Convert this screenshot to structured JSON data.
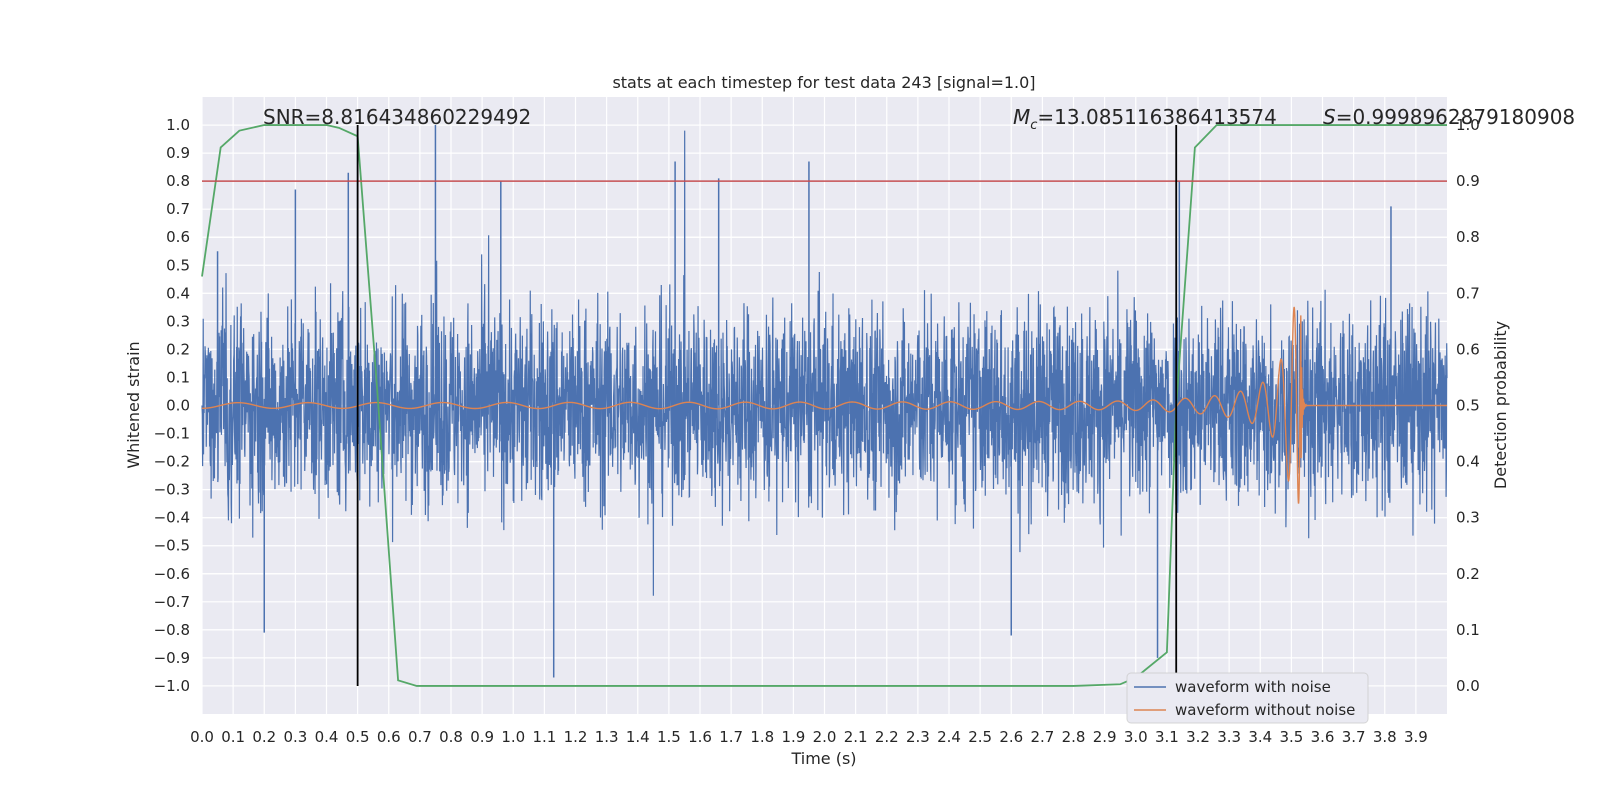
{
  "chart_data": {
    "type": "line",
    "title": "stats at each timestep for test data 243 [signal=1.0]",
    "xlabel": "Time (s)",
    "ylabel": "Whitened strain",
    "y2label": "Detection probability",
    "xlim": [
      0.0,
      4.0
    ],
    "ylim": [
      -1.1,
      1.1
    ],
    "y2lim": [
      -0.05,
      1.05
    ],
    "x_ticks": [
      0.0,
      0.1,
      0.2,
      0.3,
      0.4,
      0.5,
      0.6,
      0.7,
      0.8,
      0.9,
      1.0,
      1.1,
      1.2,
      1.3,
      1.4,
      1.5,
      1.6,
      1.7,
      1.8,
      1.9,
      2.0,
      2.1,
      2.2,
      2.3,
      2.4,
      2.5,
      2.6,
      2.7,
      2.8,
      2.9,
      3.0,
      3.1,
      3.2,
      3.3,
      3.4,
      3.5,
      3.6,
      3.7,
      3.8,
      3.9
    ],
    "x_tick_labels": [
      "0.0",
      "0.1",
      "0.2",
      "0.3",
      "0.4",
      "0.5",
      "0.6",
      "0.7",
      "0.8",
      "0.9",
      "1.0",
      "1.1",
      "1.2",
      "1.3",
      "1.4",
      "1.5",
      "1.6",
      "1.7",
      "1.8",
      "1.9",
      "2.0",
      "2.1",
      "2.2",
      "2.3",
      "2.4",
      "2.5",
      "2.6",
      "2.7",
      "2.8",
      "2.9",
      "3.0",
      "3.1",
      "3.2",
      "3.3",
      "3.4",
      "3.5",
      "3.6",
      "3.7",
      "3.8",
      "3.9"
    ],
    "y_ticks": [
      1.0,
      0.9,
      0.8,
      0.7,
      0.6,
      0.5,
      0.4,
      0.3,
      0.2,
      0.1,
      0.0,
      -0.1,
      -0.2,
      -0.3,
      -0.4,
      -0.5,
      -0.6,
      -0.7,
      -0.8,
      -0.9,
      -1.0
    ],
    "y_tick_labels": [
      "1.0",
      "0.9",
      "0.8",
      "0.7",
      "0.6",
      "0.5",
      "0.4",
      "0.3",
      "0.2",
      "0.1",
      "0.0",
      "−0.1",
      "−0.2",
      "−0.3",
      "−0.4",
      "−0.5",
      "−0.6",
      "−0.7",
      "−0.8",
      "−0.9",
      "−1.0"
    ],
    "y2_ticks": [
      1.0,
      0.9,
      0.8,
      0.7,
      0.6,
      0.5,
      0.4,
      0.3,
      0.2,
      0.1,
      0.0
    ],
    "y2_tick_labels": [
      "1.0",
      "0.9",
      "0.8",
      "0.7",
      "0.6",
      "0.5",
      "0.4",
      "0.3",
      "0.2",
      "0.1",
      "0.0"
    ],
    "grid": true,
    "legend_position": "bottom-right",
    "legend": [
      {
        "label": "waveform with noise",
        "color": "#4c72b0"
      },
      {
        "label": "waveform without noise",
        "color": "#dd8452"
      }
    ],
    "series": [
      {
        "name": "waveform with noise",
        "color": "#4c72b0",
        "kind": "noise",
        "x_range": [
          0.0,
          4.0
        ],
        "typical_amplitude": 0.25,
        "peak_values": [
          {
            "x": 0.05,
            "y": 0.55
          },
          {
            "x": 0.2,
            "y": -0.81
          },
          {
            "x": 0.3,
            "y": 0.77
          },
          {
            "x": 0.47,
            "y": 0.83
          },
          {
            "x": 0.5,
            "y": 0.98
          },
          {
            "x": 0.75,
            "y": 1.0
          },
          {
            "x": 0.96,
            "y": 0.8
          },
          {
            "x": 1.13,
            "y": -0.97
          },
          {
            "x": 1.52,
            "y": 0.87
          },
          {
            "x": 1.66,
            "y": 0.81
          },
          {
            "x": 1.95,
            "y": 0.87
          },
          {
            "x": 2.6,
            "y": -0.82
          },
          {
            "x": 3.07,
            "y": -0.9
          },
          {
            "x": 3.14,
            "y": 0.8
          },
          {
            "x": 3.82,
            "y": 0.71
          }
        ]
      },
      {
        "name": "waveform without noise",
        "color": "#dd8452",
        "kind": "chirp",
        "x_range": [
          0.0,
          3.55
        ],
        "merger_time": 3.53,
        "start_amplitude": 0.01,
        "peak_amplitude": 0.35
      },
      {
        "name": "detection probability",
        "axis": "right",
        "color": "#55a868",
        "x": [
          0.0,
          0.06,
          0.12,
          0.2,
          0.3,
          0.35,
          0.4,
          0.44,
          0.5,
          0.56,
          0.63,
          0.69,
          0.75,
          1.0,
          2.0,
          2.8,
          2.95,
          3.0,
          3.1,
          3.13,
          3.19,
          3.26,
          3.3,
          3.5,
          4.0
        ],
        "values": [
          0.73,
          0.96,
          0.99,
          1.0,
          1.0,
          1.0,
          1.0,
          0.995,
          0.98,
          0.55,
          0.01,
          0.0,
          0.0,
          0.0,
          0.0,
          0.0,
          0.003,
          0.015,
          0.06,
          0.5,
          0.96,
          1.0,
          1.0,
          1.0,
          1.0
        ]
      }
    ],
    "reference_lines": [
      {
        "orientation": "horizontal",
        "axis": "left",
        "y": 0.8,
        "color": "#c44e52"
      },
      {
        "orientation": "vertical",
        "x": 0.5,
        "y_range": [
          -1.0,
          1.0
        ],
        "color": "#000000"
      },
      {
        "orientation": "vertical",
        "x": 3.13,
        "y_range": [
          -1.0,
          1.0
        ],
        "color": "#000000"
      }
    ],
    "annotations": [
      {
        "text": "SNR=8.816434860229492",
        "x": 0.2,
        "y": 1.03
      },
      {
        "text": "M_c=13.085116386413574",
        "x": 2.6,
        "y": 1.03
      },
      {
        "text": "S=0.9998962879180908",
        "x": 3.6,
        "y": 1.03
      }
    ]
  }
}
